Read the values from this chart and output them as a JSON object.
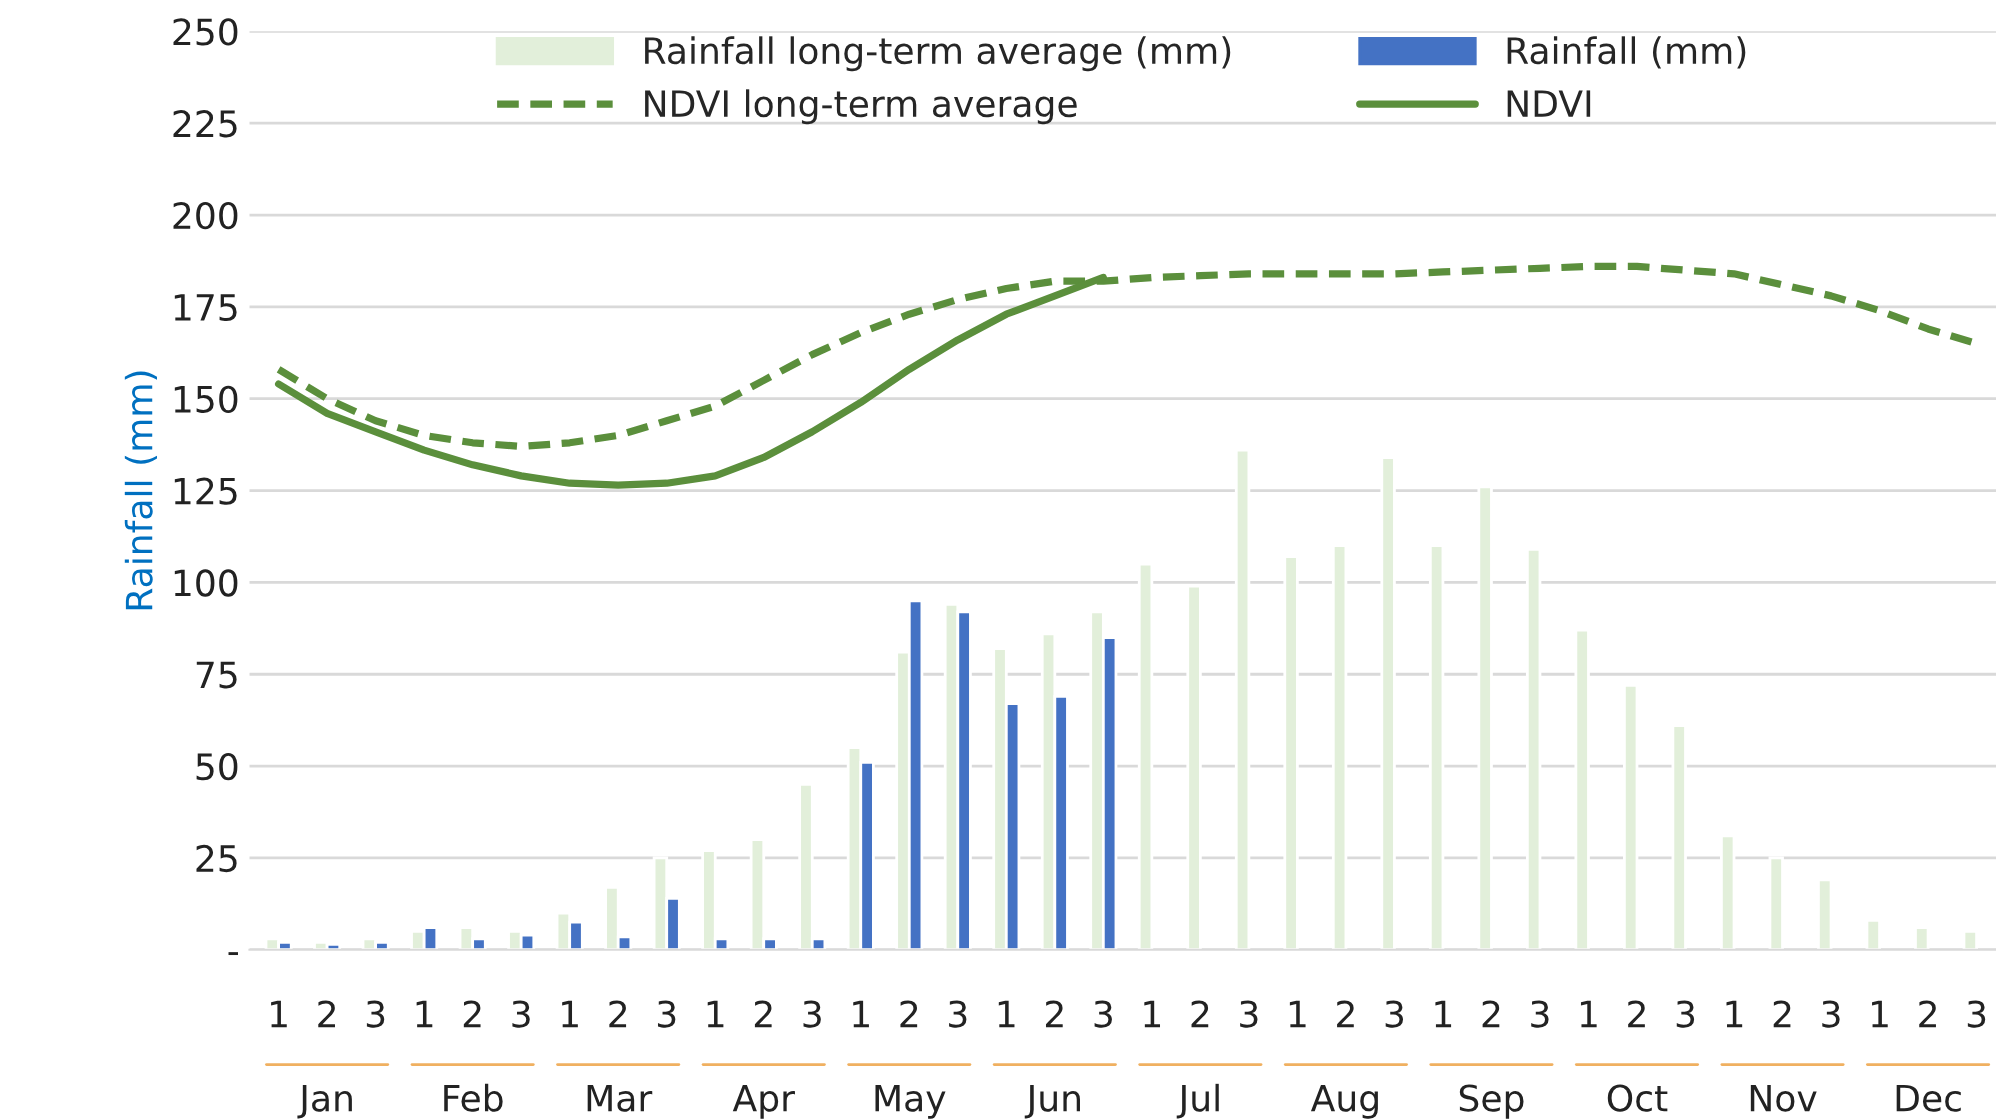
{
  "chart_data": {
    "type": "bar",
    "ylabel": "Rainfall (mm)",
    "categories": [
      "1",
      "2",
      "3",
      "1",
      "2",
      "3",
      "1",
      "2",
      "3",
      "1",
      "2",
      "3",
      "1",
      "2",
      "3",
      "1",
      "2",
      "3",
      "1",
      "2",
      "3",
      "1",
      "2",
      "3",
      "1",
      "2",
      "3",
      "1",
      "2",
      "3",
      "1",
      "2",
      "3",
      "1",
      "2",
      "3"
    ],
    "ylim": [
      0,
      250
    ],
    "yticks": [
      {
        "value": 0,
        "label": "-"
      },
      25,
      50,
      75,
      100,
      125,
      150,
      175,
      200,
      225,
      250
    ],
    "grid": "y",
    "legend": "top",
    "series": [
      {
        "name": "Rainfall long-term average (mm)",
        "color": "#e2efda",
        "values": [
          3,
          2,
          3,
          5,
          6,
          5,
          10,
          17,
          25,
          27,
          30,
          45,
          55,
          81,
          94,
          82,
          86,
          92,
          105,
          99,
          136,
          107,
          110,
          134,
          110,
          126,
          109,
          87,
          72,
          61,
          31,
          25,
          19,
          8,
          6,
          5
        ]
      },
      {
        "name": "Rainfall (mm)",
        "color": "#4472c4",
        "values": [
          2,
          1.5,
          2,
          6,
          3,
          4,
          7.5,
          3.5,
          14,
          3,
          3,
          3,
          51,
          95,
          92,
          67,
          69,
          85,
          null,
          null,
          null,
          null,
          null,
          null,
          null,
          null,
          null,
          null,
          null,
          null,
          null,
          null,
          null,
          null,
          null,
          null
        ]
      },
      {
        "name": "NDVI long-term average",
        "type": "line",
        "line_style": "dashed",
        "color": "#5b8f3c",
        "values": [
          158,
          150,
          144,
          140,
          138,
          137,
          138,
          140,
          144,
          148,
          155,
          162,
          168,
          173,
          177,
          180,
          182,
          182,
          183,
          183.5,
          184,
          184,
          184,
          184,
          184.5,
          185,
          185.5,
          186,
          186,
          185,
          184,
          181,
          178,
          174,
          169,
          165
        ]
      },
      {
        "name": "NDVI",
        "type": "line",
        "line_style": "solid",
        "color": "#5b8f3c",
        "values": [
          154,
          146,
          141,
          136,
          132,
          129,
          127,
          126.5,
          127,
          129,
          134,
          141,
          149,
          158,
          166,
          173,
          178,
          183,
          null,
          null,
          null,
          null,
          null,
          null,
          null,
          null,
          null,
          null,
          null,
          null,
          null,
          null,
          null,
          null,
          null,
          null
        ]
      }
    ],
    "annotations": [
      "Jan",
      "Feb",
      "Mar",
      "Apr",
      "May",
      "Jun",
      "Jul",
      "Aug",
      "Sep",
      "Oct",
      "Nov",
      "Dec"
    ]
  }
}
